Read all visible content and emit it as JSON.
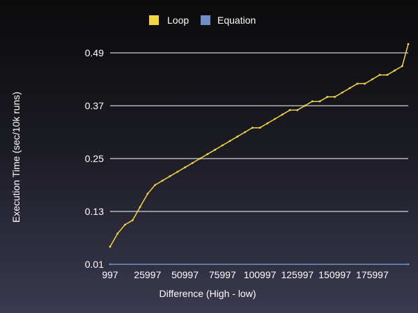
{
  "chart_data": {
    "type": "line",
    "title": "",
    "xlabel": "Difference (High - low)",
    "ylabel": "Execution Time (sec/10k runs)",
    "x_tick_labels": [
      "997",
      "25997",
      "50997",
      "75997",
      "100997",
      "125997",
      "150997",
      "175997"
    ],
    "x_ticks": [
      997,
      25997,
      50997,
      75997,
      100997,
      125997,
      150997,
      175997
    ],
    "xlim": [
      997,
      199997
    ],
    "y_tick_labels": [
      "0.01",
      "0.13",
      "0.25",
      "0.37",
      "0.49"
    ],
    "y_ticks": [
      0.01,
      0.13,
      0.25,
      0.37,
      0.49
    ],
    "ylim": [
      0.01,
      0.49
    ],
    "grid": "horizontal",
    "legend_position": "top",
    "series": [
      {
        "name": "Loop",
        "color": "#f5d442",
        "x": [
          997,
          5997,
          10997,
          15997,
          20997,
          25997,
          30997,
          35997,
          40997,
          45997,
          50997,
          55997,
          60997,
          65997,
          70997,
          75997,
          80997,
          85997,
          90997,
          95997,
          100997,
          105997,
          110997,
          115997,
          120997,
          125997,
          130997,
          135997,
          140997,
          145997,
          150997,
          155997,
          160997,
          165997,
          170997,
          175997,
          180997,
          185997,
          190997,
          195997,
          199997
        ],
        "values": [
          0.05,
          0.08,
          0.1,
          0.11,
          0.14,
          0.17,
          0.19,
          0.2,
          0.21,
          0.22,
          0.23,
          0.24,
          0.25,
          0.26,
          0.27,
          0.28,
          0.29,
          0.3,
          0.31,
          0.32,
          0.32,
          0.33,
          0.34,
          0.35,
          0.36,
          0.36,
          0.37,
          0.38,
          0.38,
          0.39,
          0.39,
          0.4,
          0.41,
          0.42,
          0.42,
          0.43,
          0.44,
          0.44,
          0.45,
          0.46,
          0.51
        ]
      },
      {
        "name": "Equation",
        "color": "#6f8fc4",
        "x": [
          997,
          199997
        ],
        "values": [
          0.01,
          0.01
        ]
      }
    ]
  }
}
